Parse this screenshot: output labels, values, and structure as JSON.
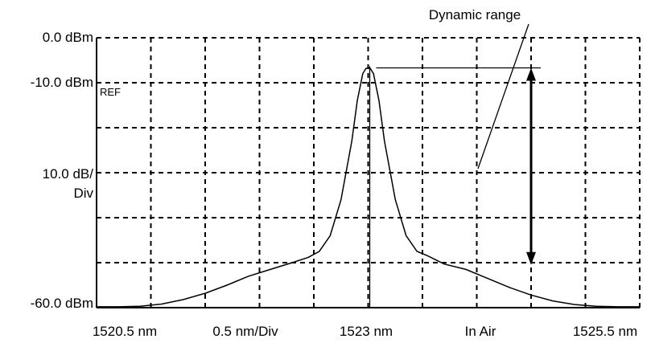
{
  "chart_data": {
    "type": "line",
    "title": "",
    "x_unit": "nm",
    "y_unit": "dBm",
    "xlim": [
      1520.5,
      1525.5
    ],
    "ylim": [
      -60,
      0
    ],
    "grid": true,
    "y_labels": {
      "top": "0.0 dBm",
      "ref": "-10.0 dBm",
      "ref_tag": "REF",
      "scale_line1": "10.0 dB/",
      "scale_line2": "Div",
      "bottom": "-60.0 dBm"
    },
    "x_labels": {
      "start": "1520.5 nm",
      "span": "0.5 nm/Div",
      "center": "1523 nm",
      "condition": "In Air",
      "end": "1525.5 nm"
    },
    "annotation": {
      "text": "Dynamic range",
      "from_db": -6.7,
      "to_db": -50.5,
      "at_x": 1524.5
    },
    "series": [
      {
        "x": [
          1520.5,
          1520.7,
          1520.9,
          1521.1,
          1521.3,
          1521.5,
          1521.7,
          1521.9,
          1522.1,
          1522.3,
          1522.45,
          1522.55,
          1522.65,
          1522.75,
          1522.85,
          1522.9,
          1522.95,
          1522.98,
          1523.0,
          1523.02,
          1523.05,
          1523.1,
          1523.15,
          1523.25,
          1523.35,
          1523.45,
          1523.55,
          1523.7,
          1523.9,
          1524.1,
          1524.3,
          1524.5,
          1524.7,
          1524.9,
          1525.1,
          1525.3,
          1525.5
        ],
        "y": [
          -59.8,
          -59.8,
          -59.7,
          -59.2,
          -58.2,
          -56.8,
          -55.0,
          -53.0,
          -51.5,
          -50.0,
          -48.8,
          -47.5,
          -44.0,
          -36.0,
          -23.0,
          -14.0,
          -8.0,
          -6.8,
          -6.7,
          -6.8,
          -8.0,
          -14.0,
          -23.0,
          -36.0,
          -44.0,
          -47.5,
          -48.5,
          -50.3,
          -51.5,
          -53.5,
          -55.5,
          -57.2,
          -58.5,
          -59.3,
          -59.7,
          -59.8,
          -59.8
        ]
      }
    ]
  }
}
